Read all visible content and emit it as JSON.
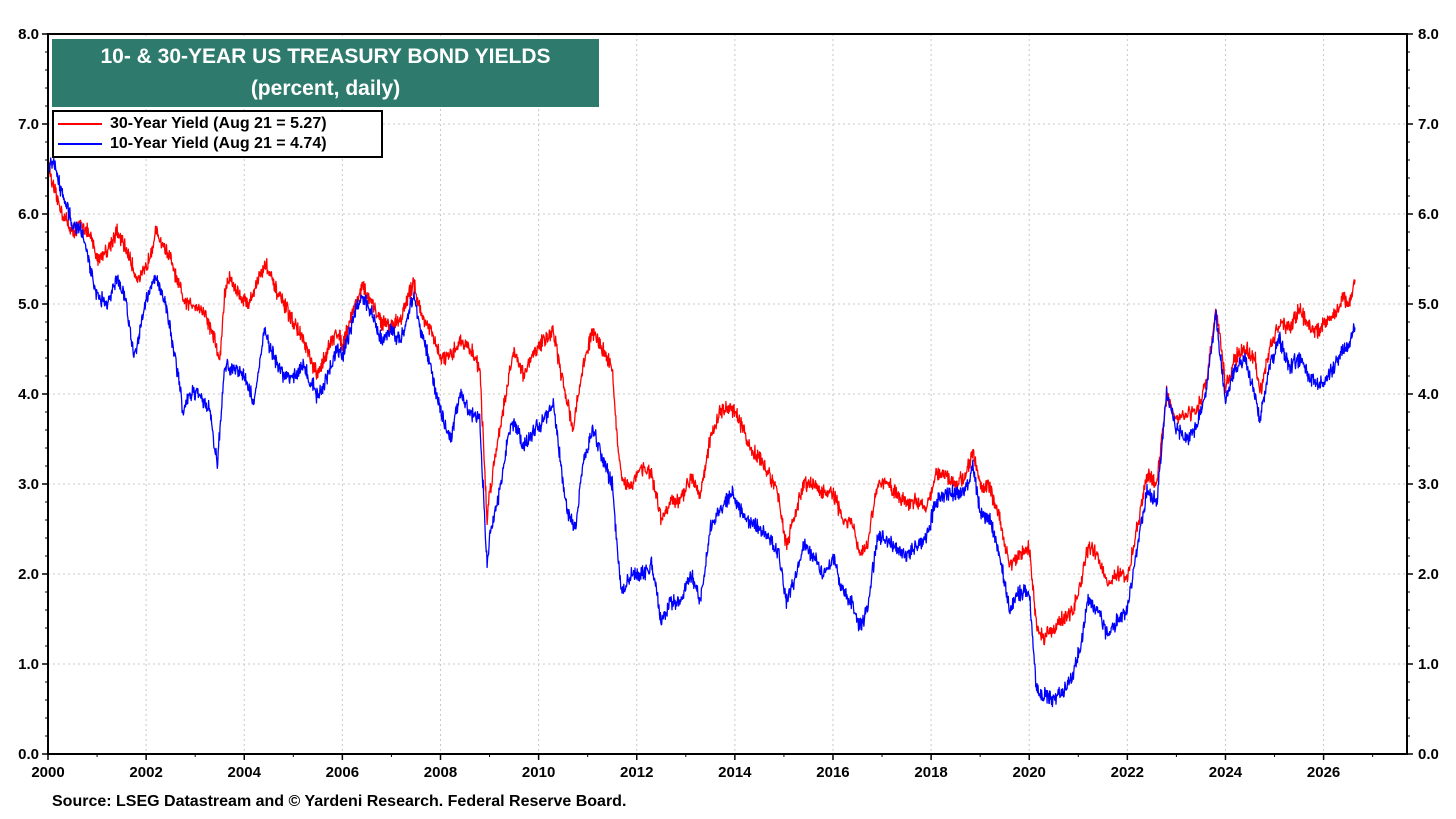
{
  "chart_data": {
    "type": "line",
    "title": "10- & 30-YEAR US TREASURY BOND YIELDS",
    "subtitle": "(percent, daily)",
    "source": "Source: LSEG Datastream and © Yardeni Research. Federal Reserve Board.",
    "x_ticks": [
      "2000",
      "2002",
      "2004",
      "2006",
      "2008",
      "2010",
      "2012",
      "2014",
      "2016",
      "2018",
      "2020",
      "2022",
      "2024",
      "2026"
    ],
    "y_ticks": [
      "0.0",
      "1.0",
      "2.0",
      "3.0",
      "4.0",
      "5.0",
      "6.0",
      "7.0",
      "8.0"
    ],
    "xlim": [
      2000,
      2027.7
    ],
    "ylim": [
      0,
      8
    ],
    "grid": true,
    "legend_position": "top-left",
    "series": [
      {
        "name": "30-Year Yield (Aug 21 = 5.27)",
        "color": "#ff0000",
        "points": [
          [
            2000.0,
            6.6
          ],
          [
            2000.1,
            6.3
          ],
          [
            2000.3,
            6.0
          ],
          [
            2000.5,
            5.8
          ],
          [
            2000.7,
            5.9
          ],
          [
            2000.9,
            5.7
          ],
          [
            2001.0,
            5.5
          ],
          [
            2001.2,
            5.6
          ],
          [
            2001.4,
            5.8
          ],
          [
            2001.6,
            5.6
          ],
          [
            2001.8,
            5.3
          ],
          [
            2001.9,
            5.3
          ],
          [
            2002.0,
            5.4
          ],
          [
            2002.2,
            5.8
          ],
          [
            2002.3,
            5.7
          ],
          [
            2002.5,
            5.5
          ],
          [
            2002.6,
            5.3
          ],
          [
            2002.8,
            5.0
          ],
          [
            2003.0,
            5.0
          ],
          [
            2003.2,
            4.9
          ],
          [
            2003.4,
            4.6
          ],
          [
            2003.5,
            4.35
          ],
          [
            2003.6,
            5.1
          ],
          [
            2003.7,
            5.3
          ],
          [
            2003.9,
            5.1
          ],
          [
            2004.1,
            5.0
          ],
          [
            2004.3,
            5.3
          ],
          [
            2004.45,
            5.45
          ],
          [
            2004.6,
            5.2
          ],
          [
            2004.8,
            5.0
          ],
          [
            2005.0,
            4.8
          ],
          [
            2005.2,
            4.6
          ],
          [
            2005.4,
            4.3
          ],
          [
            2005.5,
            4.2
          ],
          [
            2005.7,
            4.5
          ],
          [
            2005.9,
            4.7
          ],
          [
            2006.0,
            4.55
          ],
          [
            2006.2,
            4.9
          ],
          [
            2006.4,
            5.2
          ],
          [
            2006.6,
            5.0
          ],
          [
            2006.8,
            4.8
          ],
          [
            2007.0,
            4.75
          ],
          [
            2007.2,
            4.85
          ],
          [
            2007.45,
            5.25
          ],
          [
            2007.6,
            4.9
          ],
          [
            2007.8,
            4.7
          ],
          [
            2008.0,
            4.4
          ],
          [
            2008.2,
            4.4
          ],
          [
            2008.4,
            4.6
          ],
          [
            2008.6,
            4.5
          ],
          [
            2008.8,
            4.3
          ],
          [
            2008.95,
            2.6
          ],
          [
            2009.0,
            2.9
          ],
          [
            2009.2,
            3.6
          ],
          [
            2009.4,
            4.2
          ],
          [
            2009.5,
            4.5
          ],
          [
            2009.7,
            4.2
          ],
          [
            2009.9,
            4.45
          ],
          [
            2010.1,
            4.6
          ],
          [
            2010.3,
            4.7
          ],
          [
            2010.5,
            4.1
          ],
          [
            2010.6,
            3.9
          ],
          [
            2010.7,
            3.6
          ],
          [
            2010.9,
            4.3
          ],
          [
            2011.1,
            4.7
          ],
          [
            2011.3,
            4.5
          ],
          [
            2011.5,
            4.3
          ],
          [
            2011.6,
            3.5
          ],
          [
            2011.7,
            3.0
          ],
          [
            2011.9,
            3.0
          ],
          [
            2012.1,
            3.2
          ],
          [
            2012.3,
            3.1
          ],
          [
            2012.5,
            2.6
          ],
          [
            2012.7,
            2.8
          ],
          [
            2012.9,
            2.8
          ],
          [
            2013.1,
            3.1
          ],
          [
            2013.3,
            2.9
          ],
          [
            2013.5,
            3.5
          ],
          [
            2013.7,
            3.8
          ],
          [
            2013.9,
            3.85
          ],
          [
            2014.1,
            3.7
          ],
          [
            2014.3,
            3.4
          ],
          [
            2014.5,
            3.3
          ],
          [
            2014.7,
            3.1
          ],
          [
            2014.9,
            2.85
          ],
          [
            2015.05,
            2.3
          ],
          [
            2015.2,
            2.6
          ],
          [
            2015.4,
            3.0
          ],
          [
            2015.6,
            3.0
          ],
          [
            2015.8,
            2.9
          ],
          [
            2016.0,
            2.9
          ],
          [
            2016.2,
            2.6
          ],
          [
            2016.4,
            2.55
          ],
          [
            2016.55,
            2.2
          ],
          [
            2016.7,
            2.3
          ],
          [
            2016.9,
            3.0
          ],
          [
            2017.1,
            3.0
          ],
          [
            2017.3,
            2.9
          ],
          [
            2017.5,
            2.8
          ],
          [
            2017.7,
            2.8
          ],
          [
            2017.9,
            2.75
          ],
          [
            2018.1,
            3.1
          ],
          [
            2018.3,
            3.1
          ],
          [
            2018.5,
            3.0
          ],
          [
            2018.7,
            3.1
          ],
          [
            2018.85,
            3.35
          ],
          [
            2019.0,
            3.0
          ],
          [
            2019.2,
            2.95
          ],
          [
            2019.4,
            2.6
          ],
          [
            2019.6,
            2.1
          ],
          [
            2019.8,
            2.2
          ],
          [
            2020.0,
            2.3
          ],
          [
            2020.15,
            1.4
          ],
          [
            2020.3,
            1.3
          ],
          [
            2020.5,
            1.4
          ],
          [
            2020.7,
            1.5
          ],
          [
            2020.9,
            1.6
          ],
          [
            2021.05,
            1.9
          ],
          [
            2021.2,
            2.3
          ],
          [
            2021.4,
            2.2
          ],
          [
            2021.6,
            1.9
          ],
          [
            2021.8,
            2.0
          ],
          [
            2022.0,
            1.95
          ],
          [
            2022.2,
            2.5
          ],
          [
            2022.4,
            3.1
          ],
          [
            2022.6,
            3.0
          ],
          [
            2022.8,
            4.0
          ],
          [
            2023.0,
            3.7
          ],
          [
            2023.2,
            3.8
          ],
          [
            2023.4,
            3.8
          ],
          [
            2023.6,
            4.1
          ],
          [
            2023.8,
            4.9
          ],
          [
            2023.9,
            4.6
          ],
          [
            2024.0,
            4.05
          ],
          [
            2024.2,
            4.4
          ],
          [
            2024.4,
            4.5
          ],
          [
            2024.6,
            4.4
          ],
          [
            2024.7,
            4.0
          ],
          [
            2024.9,
            4.5
          ],
          [
            2025.1,
            4.8
          ],
          [
            2025.3,
            4.7
          ],
          [
            2025.5,
            4.95
          ],
          [
            2025.7,
            4.75
          ],
          [
            2025.9,
            4.7
          ],
          [
            2026.0,
            4.8
          ],
          [
            2026.2,
            4.85
          ],
          [
            2026.4,
            5.1
          ],
          [
            2026.5,
            4.95
          ],
          [
            2026.64,
            5.27
          ]
        ]
      },
      {
        "name": "10-Year Yield (Aug 21 = 4.74)",
        "color": "#0000ff",
        "points": [
          [
            2000.0,
            6.5
          ],
          [
            2000.1,
            6.6
          ],
          [
            2000.3,
            6.2
          ],
          [
            2000.5,
            5.9
          ],
          [
            2000.7,
            5.8
          ],
          [
            2000.9,
            5.3
          ],
          [
            2001.0,
            5.1
          ],
          [
            2001.2,
            5.0
          ],
          [
            2001.4,
            5.3
          ],
          [
            2001.6,
            5.0
          ],
          [
            2001.75,
            4.4
          ],
          [
            2001.9,
            4.8
          ],
          [
            2002.0,
            5.05
          ],
          [
            2002.2,
            5.3
          ],
          [
            2002.4,
            5.0
          ],
          [
            2002.6,
            4.4
          ],
          [
            2002.75,
            3.8
          ],
          [
            2002.9,
            4.0
          ],
          [
            2003.1,
            4.0
          ],
          [
            2003.3,
            3.8
          ],
          [
            2003.45,
            3.2
          ],
          [
            2003.6,
            4.3
          ],
          [
            2003.8,
            4.3
          ],
          [
            2004.0,
            4.2
          ],
          [
            2004.2,
            3.9
          ],
          [
            2004.4,
            4.7
          ],
          [
            2004.6,
            4.4
          ],
          [
            2004.8,
            4.2
          ],
          [
            2005.0,
            4.2
          ],
          [
            2005.2,
            4.3
          ],
          [
            2005.4,
            4.1
          ],
          [
            2005.5,
            3.95
          ],
          [
            2005.7,
            4.2
          ],
          [
            2005.9,
            4.5
          ],
          [
            2006.0,
            4.4
          ],
          [
            2006.2,
            4.8
          ],
          [
            2006.4,
            5.1
          ],
          [
            2006.6,
            4.9
          ],
          [
            2006.8,
            4.6
          ],
          [
            2007.0,
            4.7
          ],
          [
            2007.2,
            4.6
          ],
          [
            2007.45,
            5.1
          ],
          [
            2007.6,
            4.7
          ],
          [
            2007.8,
            4.3
          ],
          [
            2008.0,
            3.8
          ],
          [
            2008.2,
            3.5
          ],
          [
            2008.4,
            4.0
          ],
          [
            2008.6,
            3.8
          ],
          [
            2008.8,
            3.7
          ],
          [
            2008.95,
            2.1
          ],
          [
            2009.0,
            2.4
          ],
          [
            2009.2,
            2.9
          ],
          [
            2009.4,
            3.6
          ],
          [
            2009.5,
            3.7
          ],
          [
            2009.7,
            3.4
          ],
          [
            2009.9,
            3.6
          ],
          [
            2010.1,
            3.7
          ],
          [
            2010.3,
            3.9
          ],
          [
            2010.5,
            3.0
          ],
          [
            2010.6,
            2.7
          ],
          [
            2010.75,
            2.5
          ],
          [
            2010.9,
            3.2
          ],
          [
            2011.1,
            3.6
          ],
          [
            2011.3,
            3.3
          ],
          [
            2011.5,
            3.0
          ],
          [
            2011.6,
            2.3
          ],
          [
            2011.7,
            1.8
          ],
          [
            2011.9,
            2.0
          ],
          [
            2012.1,
            2.0
          ],
          [
            2012.3,
            2.1
          ],
          [
            2012.5,
            1.5
          ],
          [
            2012.7,
            1.7
          ],
          [
            2012.9,
            1.7
          ],
          [
            2013.1,
            2.0
          ],
          [
            2013.3,
            1.7
          ],
          [
            2013.5,
            2.5
          ],
          [
            2013.7,
            2.7
          ],
          [
            2013.95,
            2.95
          ],
          [
            2014.1,
            2.7
          ],
          [
            2014.3,
            2.6
          ],
          [
            2014.5,
            2.5
          ],
          [
            2014.7,
            2.4
          ],
          [
            2014.9,
            2.2
          ],
          [
            2015.05,
            1.7
          ],
          [
            2015.2,
            1.9
          ],
          [
            2015.4,
            2.3
          ],
          [
            2015.6,
            2.2
          ],
          [
            2015.8,
            2.0
          ],
          [
            2016.0,
            2.2
          ],
          [
            2016.2,
            1.8
          ],
          [
            2016.4,
            1.7
          ],
          [
            2016.55,
            1.4
          ],
          [
            2016.7,
            1.6
          ],
          [
            2016.9,
            2.4
          ],
          [
            2017.1,
            2.4
          ],
          [
            2017.3,
            2.3
          ],
          [
            2017.5,
            2.2
          ],
          [
            2017.7,
            2.3
          ],
          [
            2017.9,
            2.4
          ],
          [
            2018.1,
            2.8
          ],
          [
            2018.3,
            2.9
          ],
          [
            2018.5,
            2.9
          ],
          [
            2018.7,
            2.95
          ],
          [
            2018.85,
            3.2
          ],
          [
            2019.0,
            2.7
          ],
          [
            2019.2,
            2.6
          ],
          [
            2019.4,
            2.2
          ],
          [
            2019.6,
            1.6
          ],
          [
            2019.8,
            1.8
          ],
          [
            2020.0,
            1.8
          ],
          [
            2020.15,
            0.7
          ],
          [
            2020.3,
            0.65
          ],
          [
            2020.5,
            0.6
          ],
          [
            2020.7,
            0.7
          ],
          [
            2020.9,
            0.9
          ],
          [
            2021.05,
            1.2
          ],
          [
            2021.2,
            1.7
          ],
          [
            2021.4,
            1.6
          ],
          [
            2021.6,
            1.3
          ],
          [
            2021.8,
            1.5
          ],
          [
            2022.0,
            1.6
          ],
          [
            2022.2,
            2.3
          ],
          [
            2022.4,
            2.9
          ],
          [
            2022.6,
            2.8
          ],
          [
            2022.8,
            4.0
          ],
          [
            2023.0,
            3.6
          ],
          [
            2023.2,
            3.5
          ],
          [
            2023.4,
            3.6
          ],
          [
            2023.6,
            4.0
          ],
          [
            2023.8,
            4.9
          ],
          [
            2023.9,
            4.4
          ],
          [
            2024.0,
            3.9
          ],
          [
            2024.2,
            4.3
          ],
          [
            2024.4,
            4.4
          ],
          [
            2024.6,
            4.0
          ],
          [
            2024.7,
            3.7
          ],
          [
            2024.9,
            4.3
          ],
          [
            2025.1,
            4.6
          ],
          [
            2025.3,
            4.3
          ],
          [
            2025.5,
            4.4
          ],
          [
            2025.7,
            4.2
          ],
          [
            2025.9,
            4.1
          ],
          [
            2026.0,
            4.1
          ],
          [
            2026.2,
            4.3
          ],
          [
            2026.4,
            4.5
          ],
          [
            2026.5,
            4.5
          ],
          [
            2026.64,
            4.74
          ]
        ]
      }
    ]
  }
}
